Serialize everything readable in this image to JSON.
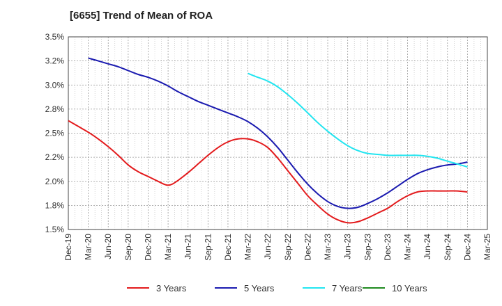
{
  "chart_data": {
    "type": "line",
    "title": "[6655]  Trend of Mean of ROA",
    "xlabel": "",
    "ylabel": "",
    "ylim": [
      1.5,
      3.5
    ],
    "yticks": [
      "1.5%",
      "1.8%",
      "2.0%",
      "2.2%",
      "2.5%",
      "2.8%",
      "3.0%",
      "3.2%",
      "3.5%"
    ],
    "ytick_values": [
      1.5,
      1.75,
      2.0,
      2.25,
      2.5,
      2.75,
      3.0,
      3.25,
      3.5
    ],
    "categories": [
      "Dec-19",
      "Mar-20",
      "Jun-20",
      "Sep-20",
      "Dec-20",
      "Mar-21",
      "Jun-21",
      "Sep-21",
      "Dec-21",
      "Mar-22",
      "Jun-22",
      "Sep-22",
      "Dec-22",
      "Mar-23",
      "Jun-23",
      "Sep-23",
      "Dec-23",
      "Mar-24",
      "Jun-24",
      "Sep-24",
      "Dec-24",
      "Mar-25"
    ],
    "grid": true,
    "legend_position": "bottom",
    "series": [
      {
        "name": "3 Years",
        "color": "#e31a1c",
        "x": [
          0,
          0.5,
          1,
          1.5,
          2,
          2.5,
          3,
          3.5,
          4,
          4.5,
          4.8,
          5,
          5.2,
          5.5,
          6,
          6.5,
          7,
          7.5,
          8,
          8.5,
          9,
          9.5,
          10,
          10.5,
          11,
          11.5,
          12,
          12.5,
          13,
          13.5,
          14,
          14.5,
          15,
          15.5,
          16,
          16.5,
          17,
          17.5,
          18,
          18.5,
          19,
          19.5,
          20
        ],
        "y": [
          2.63,
          2.57,
          2.51,
          2.44,
          2.36,
          2.27,
          2.17,
          2.1,
          2.05,
          2.0,
          1.97,
          1.96,
          1.97,
          2.01,
          2.09,
          2.18,
          2.27,
          2.35,
          2.41,
          2.44,
          2.44,
          2.41,
          2.35,
          2.24,
          2.11,
          1.98,
          1.85,
          1.75,
          1.66,
          1.6,
          1.57,
          1.58,
          1.62,
          1.67,
          1.72,
          1.79,
          1.85,
          1.89,
          1.9,
          1.9,
          1.9,
          1.9,
          1.89
        ]
      },
      {
        "name": "5 Years",
        "color": "#1a1ab0",
        "x": [
          1,
          1.5,
          2,
          2.5,
          3,
          3.5,
          4,
          4.5,
          5,
          5.5,
          6,
          6.5,
          7,
          7.5,
          8,
          8.5,
          9,
          9.5,
          10,
          10.5,
          11,
          11.5,
          12,
          12.5,
          13,
          13.5,
          14,
          14.5,
          15,
          15.5,
          16,
          16.5,
          17,
          17.5,
          18,
          18.5,
          19,
          19.5,
          20
        ],
        "y": [
          3.28,
          3.25,
          3.22,
          3.19,
          3.15,
          3.11,
          3.08,
          3.04,
          2.99,
          2.93,
          2.88,
          2.83,
          2.79,
          2.75,
          2.71,
          2.67,
          2.62,
          2.55,
          2.46,
          2.35,
          2.22,
          2.09,
          1.97,
          1.87,
          1.79,
          1.74,
          1.72,
          1.73,
          1.77,
          1.82,
          1.88,
          1.95,
          2.02,
          2.08,
          2.12,
          2.15,
          2.17,
          2.18,
          2.2
        ]
      },
      {
        "name": "7 Years",
        "color": "#22e5f0",
        "x": [
          9,
          9.5,
          10,
          10.5,
          11,
          11.5,
          12,
          12.5,
          13,
          13.5,
          14,
          14.5,
          15,
          15.5,
          16,
          16.5,
          17,
          17.5,
          18,
          18.5,
          19,
          19.5,
          20
        ],
        "y": [
          3.12,
          3.08,
          3.04,
          2.98,
          2.9,
          2.81,
          2.71,
          2.61,
          2.52,
          2.44,
          2.37,
          2.32,
          2.29,
          2.28,
          2.27,
          2.27,
          2.27,
          2.27,
          2.26,
          2.24,
          2.21,
          2.18,
          2.15
        ]
      },
      {
        "name": "10 Years",
        "color": "#1f8a1f",
        "x": [],
        "y": []
      }
    ]
  }
}
